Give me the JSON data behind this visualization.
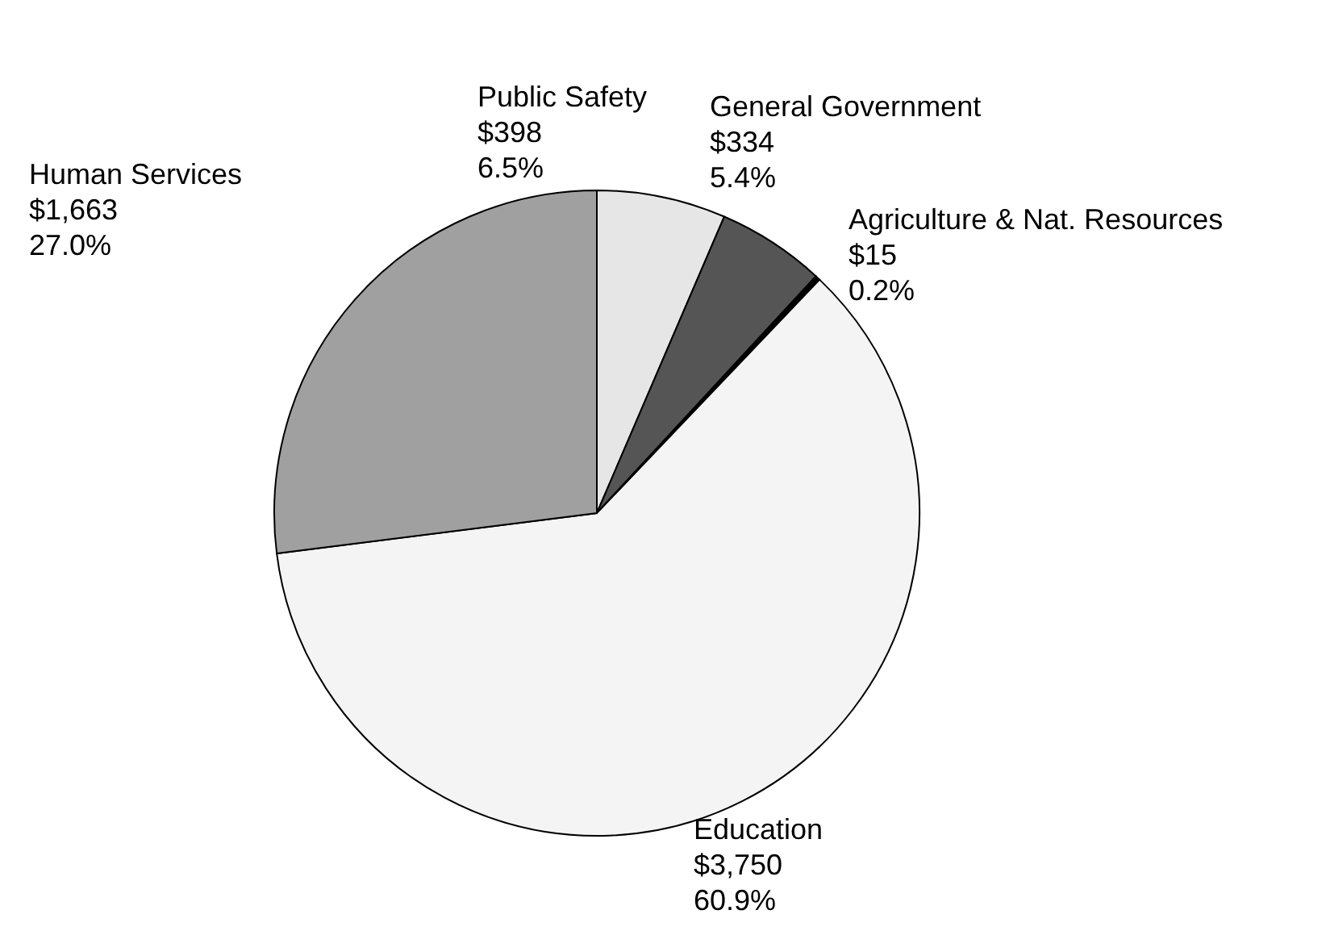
{
  "chart_data": {
    "type": "pie",
    "categories": [
      "Public Safety",
      "General Government",
      "Agriculture & Nat. Resources",
      "Education",
      "Human Services"
    ],
    "values": [
      398,
      334,
      15,
      3750,
      1663
    ],
    "colors": [
      "#e6e6e6",
      "#555555",
      "#000000",
      "#f4f4f4",
      "#a0a0a0"
    ],
    "value_labels": [
      "$398",
      "$334",
      "$15",
      "$3,750",
      "$1,663"
    ],
    "annotations": [
      {
        "text": "6.5%",
        "x": "Public Safety"
      },
      {
        "text": "5.4%",
        "x": "General Government"
      },
      {
        "text": "0.2%",
        "x": "Agriculture & Nat. Resources"
      },
      {
        "text": "60.9%",
        "x": "Education"
      },
      {
        "text": "27.0%",
        "x": "Human Services"
      }
    ]
  }
}
